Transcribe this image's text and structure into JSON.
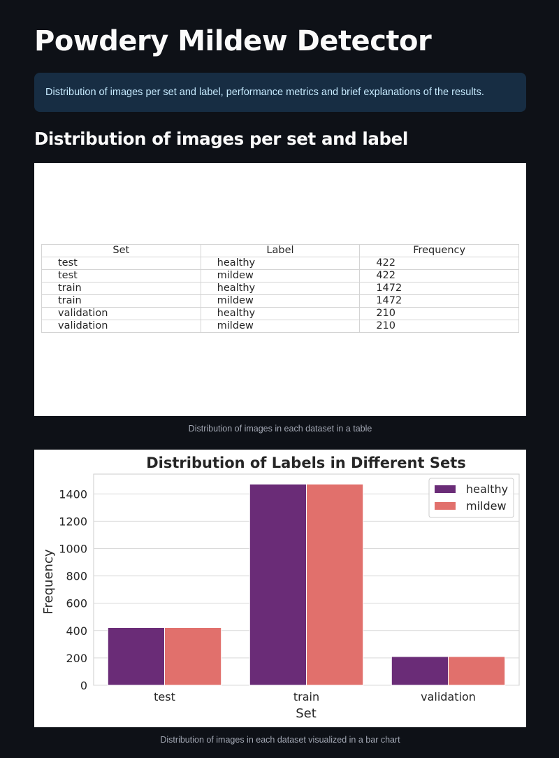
{
  "page": {
    "title": "Powdery Mildew Detector",
    "info": "Distribution of images per set and label, performance metrics and brief explanations of the results.",
    "subheader": "Distribution of images per set and label"
  },
  "table": {
    "headers": [
      "Set",
      "Label",
      "Frequency"
    ],
    "rows": [
      [
        "test",
        "healthy",
        "422"
      ],
      [
        "test",
        "mildew",
        "422"
      ],
      [
        "train",
        "healthy",
        "1472"
      ],
      [
        "train",
        "mildew",
        "1472"
      ],
      [
        "validation",
        "healthy",
        "210"
      ],
      [
        "validation",
        "mildew",
        "210"
      ]
    ],
    "caption": "Distribution of images in each dataset in a table"
  },
  "chart_caption": "Distribution of images in each dataset visualized in a bar chart",
  "chart_data": {
    "type": "bar",
    "title": "Distribution of Labels in Different Sets",
    "xlabel": "Set",
    "ylabel": "Frequency",
    "categories": [
      "test",
      "train",
      "validation"
    ],
    "series": [
      {
        "name": "healthy",
        "values": [
          422,
          1472,
          210
        ],
        "color": "#6a2c77"
      },
      {
        "name": "mildew",
        "values": [
          422,
          1472,
          210
        ],
        "color": "#e1706c"
      }
    ],
    "ylim": [
      0,
      1545
    ],
    "yticks": [
      0,
      200,
      400,
      600,
      800,
      1000,
      1200,
      1400
    ],
    "grid": true,
    "legend": "top-right"
  }
}
